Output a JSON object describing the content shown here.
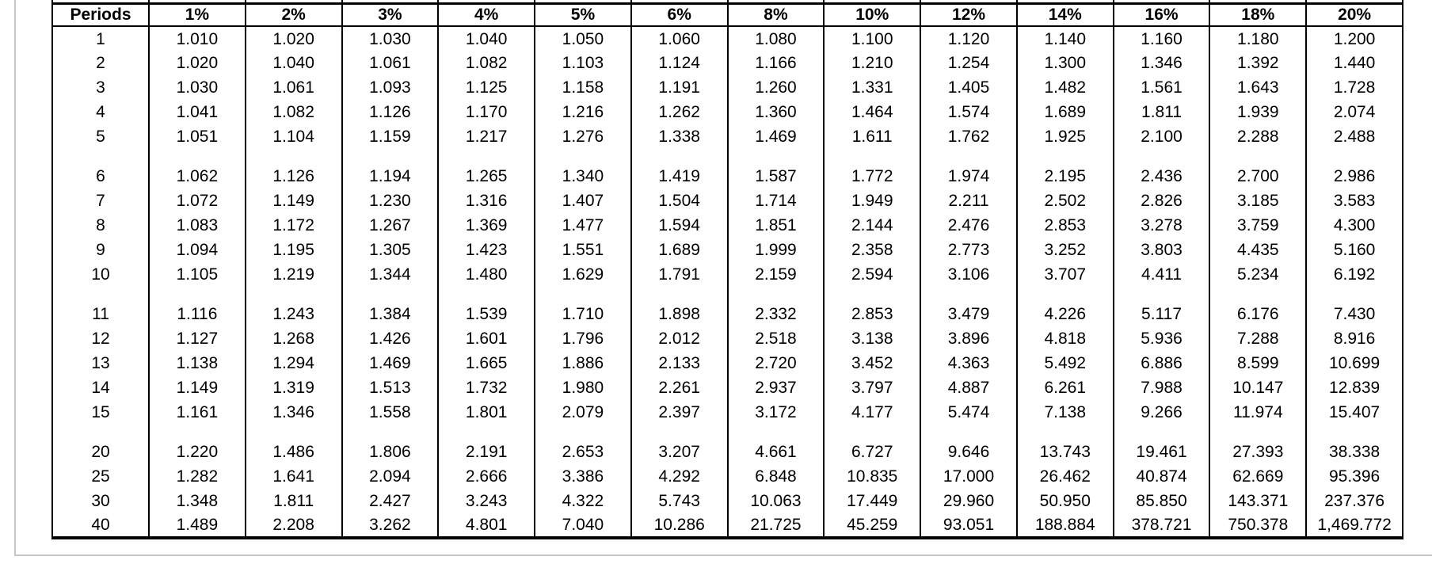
{
  "page": {
    "background": "#ffffff",
    "frame_border_color": "#c5c5c5",
    "table_border_color": "#000000"
  },
  "table": {
    "header": [
      "Periods",
      "1%",
      "2%",
      "3%",
      "4%",
      "5%",
      "6%",
      "8%",
      "10%",
      "12%",
      "14%",
      "16%",
      "18%",
      "20%"
    ],
    "groups": [
      [
        [
          "1",
          "1.010",
          "1.020",
          "1.030",
          "1.040",
          "1.050",
          "1.060",
          "1.080",
          "1.100",
          "1.120",
          "1.140",
          "1.160",
          "1.180",
          "1.200"
        ],
        [
          "2",
          "1.020",
          "1.040",
          "1.061",
          "1.082",
          "1.103",
          "1.124",
          "1.166",
          "1.210",
          "1.254",
          "1.300",
          "1.346",
          "1.392",
          "1.440"
        ],
        [
          "3",
          "1.030",
          "1.061",
          "1.093",
          "1.125",
          "1.158",
          "1.191",
          "1.260",
          "1.331",
          "1.405",
          "1.482",
          "1.561",
          "1.643",
          "1.728"
        ],
        [
          "4",
          "1.041",
          "1.082",
          "1.126",
          "1.170",
          "1.216",
          "1.262",
          "1.360",
          "1.464",
          "1.574",
          "1.689",
          "1.811",
          "1.939",
          "2.074"
        ],
        [
          "5",
          "1.051",
          "1.104",
          "1.159",
          "1.217",
          "1.276",
          "1.338",
          "1.469",
          "1.611",
          "1.762",
          "1.925",
          "2.100",
          "2.288",
          "2.488"
        ]
      ],
      [
        [
          "6",
          "1.062",
          "1.126",
          "1.194",
          "1.265",
          "1.340",
          "1.419",
          "1.587",
          "1.772",
          "1.974",
          "2.195",
          "2.436",
          "2.700",
          "2.986"
        ],
        [
          "7",
          "1.072",
          "1.149",
          "1.230",
          "1.316",
          "1.407",
          "1.504",
          "1.714",
          "1.949",
          "2.211",
          "2.502",
          "2.826",
          "3.185",
          "3.583"
        ],
        [
          "8",
          "1.083",
          "1.172",
          "1.267",
          "1.369",
          "1.477",
          "1.594",
          "1.851",
          "2.144",
          "2.476",
          "2.853",
          "3.278",
          "3.759",
          "4.300"
        ],
        [
          "9",
          "1.094",
          "1.195",
          "1.305",
          "1.423",
          "1.551",
          "1.689",
          "1.999",
          "2.358",
          "2.773",
          "3.252",
          "3.803",
          "4.435",
          "5.160"
        ],
        [
          "10",
          "1.105",
          "1.219",
          "1.344",
          "1.480",
          "1.629",
          "1.791",
          "2.159",
          "2.594",
          "3.106",
          "3.707",
          "4.411",
          "5.234",
          "6.192"
        ]
      ],
      [
        [
          "11",
          "1.116",
          "1.243",
          "1.384",
          "1.539",
          "1.710",
          "1.898",
          "2.332",
          "2.853",
          "3.479",
          "4.226",
          "5.117",
          "6.176",
          "7.430"
        ],
        [
          "12",
          "1.127",
          "1.268",
          "1.426",
          "1.601",
          "1.796",
          "2.012",
          "2.518",
          "3.138",
          "3.896",
          "4.818",
          "5.936",
          "7.288",
          "8.916"
        ],
        [
          "13",
          "1.138",
          "1.294",
          "1.469",
          "1.665",
          "1.886",
          "2.133",
          "2.720",
          "3.452",
          "4.363",
          "5.492",
          "6.886",
          "8.599",
          "10.699"
        ],
        [
          "14",
          "1.149",
          "1.319",
          "1.513",
          "1.732",
          "1.980",
          "2.261",
          "2.937",
          "3.797",
          "4.887",
          "6.261",
          "7.988",
          "10.147",
          "12.839"
        ],
        [
          "15",
          "1.161",
          "1.346",
          "1.558",
          "1.801",
          "2.079",
          "2.397",
          "3.172",
          "4.177",
          "5.474",
          "7.138",
          "9.266",
          "11.974",
          "15.407"
        ]
      ],
      [
        [
          "20",
          "1.220",
          "1.486",
          "1.806",
          "2.191",
          "2.653",
          "3.207",
          "4.661",
          "6.727",
          "9.646",
          "13.743",
          "19.461",
          "27.393",
          "38.338"
        ],
        [
          "25",
          "1.282",
          "1.641",
          "2.094",
          "2.666",
          "3.386",
          "4.292",
          "6.848",
          "10.835",
          "17.000",
          "26.462",
          "40.874",
          "62.669",
          "95.396"
        ],
        [
          "30",
          "1.348",
          "1.811",
          "2.427",
          "3.243",
          "4.322",
          "5.743",
          "10.063",
          "17.449",
          "29.960",
          "50.950",
          "85.850",
          "143.371",
          "237.376"
        ],
        [
          "40",
          "1.489",
          "2.208",
          "3.262",
          "4.801",
          "7.040",
          "10.286",
          "21.725",
          "45.259",
          "93.051",
          "188.884",
          "378.721",
          "750.378",
          "1,469.772"
        ]
      ]
    ]
  }
}
